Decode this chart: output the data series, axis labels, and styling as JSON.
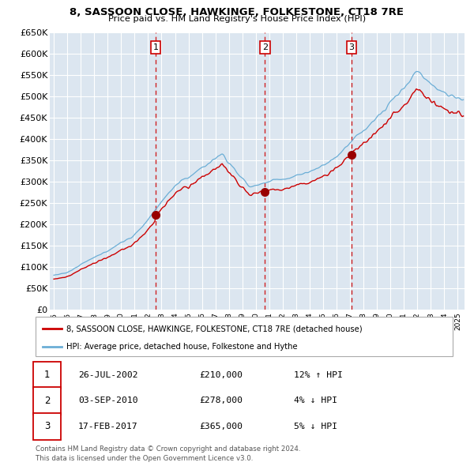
{
  "title": "8, SASSOON CLOSE, HAWKINGE, FOLKESTONE, CT18 7RE",
  "subtitle": "Price paid vs. HM Land Registry's House Price Index (HPI)",
  "legend_entry1": "8, SASSOON CLOSE, HAWKINGE, FOLKESTONE, CT18 7RE (detached house)",
  "legend_entry2": "HPI: Average price, detached house, Folkestone and Hythe",
  "sale1_date": "26-JUL-2002",
  "sale1_price": 210000,
  "sale1_label": "12% ↑ HPI",
  "sale1_x": 2002.57,
  "sale2_date": "03-SEP-2010",
  "sale2_price": 278000,
  "sale2_label": "4% ↓ HPI",
  "sale2_x": 2010.67,
  "sale3_date": "17-FEB-2017",
  "sale3_price": 365000,
  "sale3_label": "5% ↓ HPI",
  "sale3_x": 2017.12,
  "footer1": "Contains HM Land Registry data © Crown copyright and database right 2024.",
  "footer2": "This data is licensed under the Open Government Licence v3.0.",
  "hpi_color": "#6baed6",
  "price_color": "#cc0000",
  "marker_color": "#990000",
  "dashed_color": "#cc0000",
  "background_color": "#ffffff",
  "plot_bg_color": "#dce6f0",
  "grid_color": "#ffffff",
  "ylim_min": 0,
  "ylim_max": 650000,
  "xlim_min": 1994.7,
  "xlim_max": 2025.5,
  "num_box_color": "#cc0000",
  "table_data": [
    [
      "1",
      "26-JUL-2002",
      "£210,000",
      "12% ↑ HPI"
    ],
    [
      "2",
      "03-SEP-2010",
      "£278,000",
      "4% ↓ HPI"
    ],
    [
      "3",
      "17-FEB-2017",
      "£365,000",
      "5% ↓ HPI"
    ]
  ]
}
